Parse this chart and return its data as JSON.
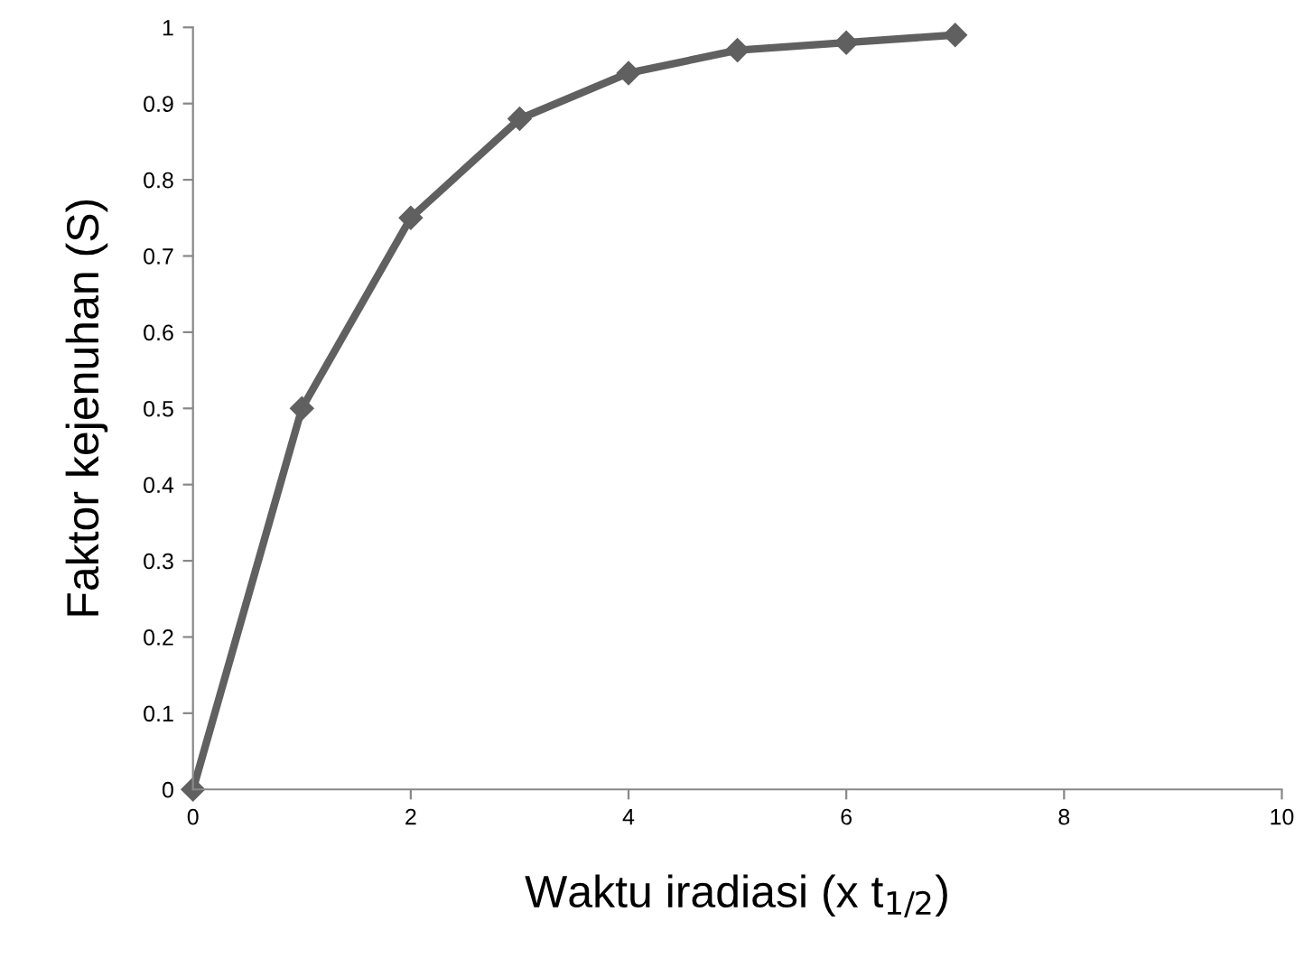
{
  "chart_data": {
    "type": "line",
    "xlabel": "Waktu iradiasi (x t$_{1/2}$)",
    "ylabel": "Faktor kejenuhan (S)",
    "series": [
      {
        "color": "#606060",
        "x": [
          0,
          1,
          2,
          3,
          4,
          5,
          6,
          7
        ],
        "values": [
          0,
          0.5,
          0.75,
          0.88,
          0.94,
          0.97,
          0.98,
          0.99
        ]
      }
    ],
    "xlim": [
      0,
      10
    ],
    "xticks": [
      0,
      2,
      4,
      6,
      8,
      10
    ],
    "ylim": [
      0,
      1
    ],
    "yticks": [
      0,
      0.1,
      0.2,
      0.3,
      0.4,
      0.5,
      0.6,
      0.7,
      0.8,
      0.9,
      1
    ],
    "marker": "diamond",
    "line_style": "solid",
    "grid": false,
    "legend": false
  }
}
